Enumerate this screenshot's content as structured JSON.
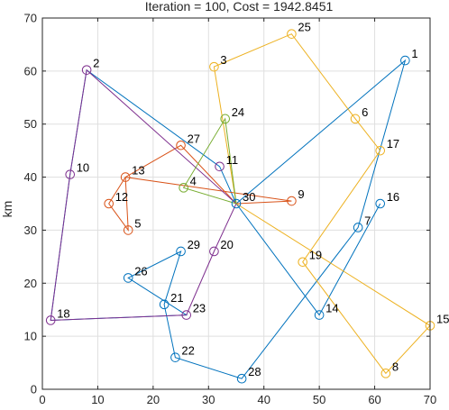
{
  "chart_data": {
    "type": "scatter",
    "title": "Iteration = 100, Cost = 1942.8451",
    "xlabel": "",
    "ylabel": "km",
    "xlim": [
      0,
      70
    ],
    "ylim": [
      0,
      70
    ],
    "xticks": [
      0,
      10,
      20,
      30,
      40,
      50,
      60,
      70
    ],
    "yticks": [
      0,
      10,
      20,
      30,
      40,
      50,
      60,
      70
    ],
    "grid": true,
    "depot": 30,
    "points": [
      {
        "id": 1,
        "x": 65.5,
        "y": 62.0
      },
      {
        "id": 2,
        "x": 8.0,
        "y": 60.2
      },
      {
        "id": 3,
        "x": 31.0,
        "y": 60.8
      },
      {
        "id": 4,
        "x": 25.5,
        "y": 38.0
      },
      {
        "id": 5,
        "x": 15.5,
        "y": 30.0
      },
      {
        "id": 6,
        "x": 56.5,
        "y": 51.0
      },
      {
        "id": 7,
        "x": 57.0,
        "y": 30.5
      },
      {
        "id": 8,
        "x": 62.0,
        "y": 3.0
      },
      {
        "id": 9,
        "x": 45.0,
        "y": 35.5
      },
      {
        "id": 10,
        "x": 5.0,
        "y": 40.5
      },
      {
        "id": 11,
        "x": 32.0,
        "y": 42.0
      },
      {
        "id": 12,
        "x": 12.0,
        "y": 35.0
      },
      {
        "id": 13,
        "x": 15.0,
        "y": 40.0
      },
      {
        "id": 14,
        "x": 50.0,
        "y": 14.0
      },
      {
        "id": 15,
        "x": 70.0,
        "y": 12.0
      },
      {
        "id": 16,
        "x": 61.0,
        "y": 35.0
      },
      {
        "id": 17,
        "x": 61.0,
        "y": 45.0
      },
      {
        "id": 18,
        "x": 1.5,
        "y": 13.0
      },
      {
        "id": 19,
        "x": 47.0,
        "y": 24.0
      },
      {
        "id": 20,
        "x": 31.0,
        "y": 26.0
      },
      {
        "id": 21,
        "x": 22.0,
        "y": 16.0
      },
      {
        "id": 22,
        "x": 24.0,
        "y": 6.0
      },
      {
        "id": 23,
        "x": 26.0,
        "y": 14.0
      },
      {
        "id": 24,
        "x": 33.0,
        "y": 51.0
      },
      {
        "id": 25,
        "x": 45.0,
        "y": 67.0
      },
      {
        "id": 26,
        "x": 15.5,
        "y": 21.0
      },
      {
        "id": 27,
        "x": 25.0,
        "y": 46.0
      },
      {
        "id": 28,
        "x": 36.0,
        "y": 2.0
      },
      {
        "id": 29,
        "x": 25.0,
        "y": 26.0
      },
      {
        "id": 30,
        "x": 35.0,
        "y": 35.0
      }
    ],
    "series": [
      {
        "color": "#0072BD",
        "route": [
          30,
          1,
          7,
          28,
          22,
          21,
          29,
          26,
          23,
          18,
          10,
          2,
          11,
          30
        ]
      },
      {
        "color": "#0072BD",
        "route": [
          30,
          14,
          16
        ]
      },
      {
        "color": "#D95319",
        "route": [
          30,
          27,
          13,
          12,
          5,
          13,
          9,
          30
        ]
      },
      {
        "color": "#EDB120",
        "route": [
          30,
          3,
          25,
          6,
          17,
          19,
          8,
          15,
          30
        ]
      },
      {
        "color": "#7E2F8E",
        "route": [
          30,
          2,
          10,
          18,
          23,
          20,
          30
        ]
      },
      {
        "color": "#77AC30",
        "route": [
          30,
          4,
          24,
          30
        ]
      }
    ],
    "point_colors": {
      "1": "#0072BD",
      "7": "#0072BD",
      "14": "#0072BD",
      "16": "#0072BD",
      "21": "#0072BD",
      "22": "#0072BD",
      "26": "#0072BD",
      "28": "#0072BD",
      "29": "#0072BD",
      "30": "#0072BD",
      "5": "#D95319",
      "9": "#D95319",
      "12": "#D95319",
      "13": "#D95319",
      "27": "#D95319",
      "3": "#EDB120",
      "6": "#EDB120",
      "8": "#EDB120",
      "15": "#EDB120",
      "17": "#EDB120",
      "19": "#EDB120",
      "25": "#EDB120",
      "2": "#7E2F8E",
      "10": "#7E2F8E",
      "11": "#7E2F8E",
      "18": "#7E2F8E",
      "20": "#7E2F8E",
      "23": "#7E2F8E",
      "4": "#77AC30",
      "24": "#77AC30"
    }
  }
}
